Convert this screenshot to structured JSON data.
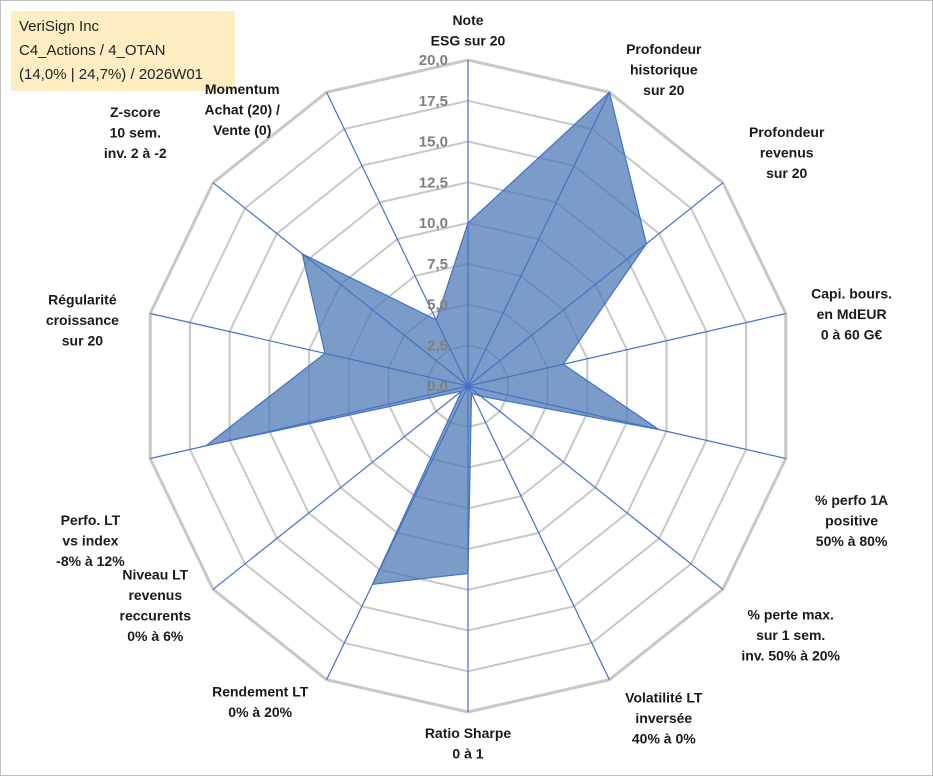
{
  "title_box": {
    "line1": "VeriSign Inc",
    "line2": "C4_Actions / 4_OTAN",
    "line3": "(14,0% | 24,7%) / 2026W01",
    "background": "#ffeec4"
  },
  "chart_data": {
    "type": "radar",
    "title": "VeriSign Inc",
    "range": [
      0,
      20
    ],
    "tick_labels": [
      "0,0",
      "2,5",
      "5,0",
      "7,5",
      "10,0",
      "12,5",
      "15,0",
      "17,5",
      "20,0"
    ],
    "axes": [
      {
        "lines": [
          "Note",
          "ESG sur 20"
        ]
      },
      {
        "lines": [
          "Profondeur",
          "historique",
          "sur 20"
        ]
      },
      {
        "lines": [
          "Profondeur",
          "revenus",
          "sur 20"
        ]
      },
      {
        "lines": [
          "Capi. bours.",
          "en MdEUR",
          "0 à 60 G€"
        ]
      },
      {
        "lines": [
          "% perfo 1A",
          "positive",
          "50% à 80%"
        ]
      },
      {
        "lines": [
          "% perte max.",
          "sur 1 sem.",
          "inv. 50% à 20%"
        ]
      },
      {
        "lines": [
          "Volatilité LT",
          "inversée",
          "40% à 0%"
        ]
      },
      {
        "lines": [
          "Ratio Sharpe",
          "0 à 1"
        ]
      },
      {
        "lines": [
          "Rendement LT",
          "0% à 20%"
        ]
      },
      {
        "lines": [
          "Niveau LT",
          "revenus",
          "reccurents",
          "0% à 6%"
        ]
      },
      {
        "lines": [
          "Perfo. LT",
          "vs index",
          "-8% à 12%"
        ]
      },
      {
        "lines": [
          "Régularité",
          "croissance",
          "sur 20"
        ]
      },
      {
        "lines": [
          "Z-score",
          "10 sem.",
          "inv. 2 à -2"
        ]
      },
      {
        "lines": [
          "Momentum",
          "Achat (20) /",
          "Vente (0)"
        ]
      }
    ],
    "series": [
      {
        "name": "VeriSign Inc",
        "values": [
          10.0,
          20.0,
          14.0,
          6.0,
          12.0,
          1.0,
          0.5,
          11.5,
          13.5,
          0.5,
          16.5,
          9.0,
          13.0,
          4.5
        ],
        "fill": "#4f7bb5",
        "fill_opacity": 0.75,
        "stroke": "#4472c4"
      }
    ],
    "grid_color": "#c8c8c8",
    "spoke_color": "#4472c4",
    "legend": "none"
  }
}
